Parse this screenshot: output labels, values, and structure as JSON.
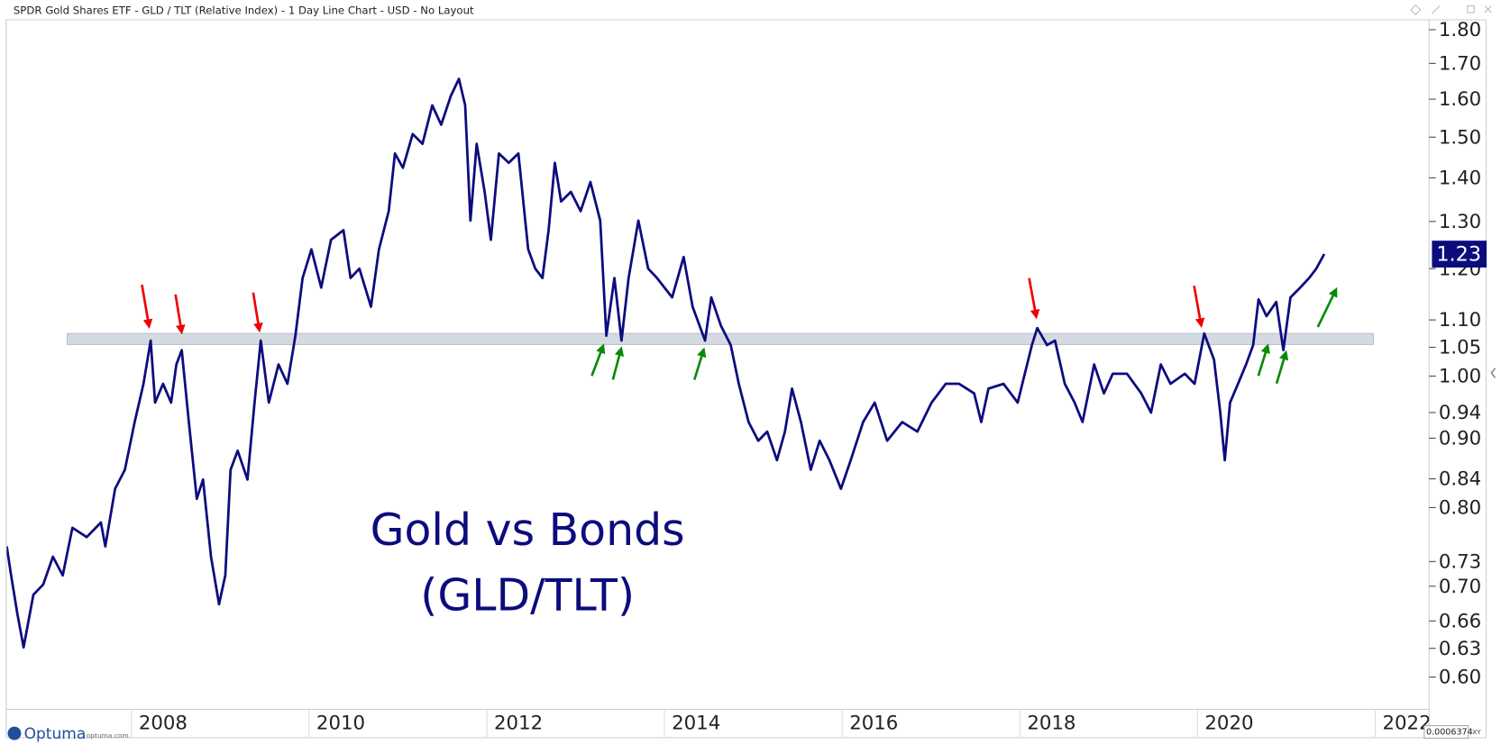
{
  "chart_data": {
    "type": "line",
    "title": "SPDR Gold Shares ETF - GLD / TLT (Relative Index) - 1 Day Line Chart - USD - No Layout",
    "annotations": [
      "Gold vs Bonds",
      "(GLD/TLT)"
    ],
    "log_y": true,
    "color": "#0c0c7e",
    "support_zone": [
      1.055,
      1.075
    ],
    "zone_color": "#d5dae2",
    "xlim": [
      2006.24,
      2022.25
    ],
    "ylim": [
      0.568,
      1.832
    ],
    "xticks": [
      2008,
      2010,
      2012,
      2014,
      2016,
      2018,
      2020,
      2022
    ],
    "yticks": [
      {
        "value": 1.8,
        "label": "1.80"
      },
      {
        "value": 1.7,
        "label": "1.70"
      },
      {
        "value": 1.6,
        "label": "1.60"
      },
      {
        "value": 1.5,
        "label": "1.50"
      },
      {
        "value": 1.4,
        "label": "1.40"
      },
      {
        "value": 1.3,
        "label": "1.30"
      },
      {
        "value": 1.2,
        "label": "1.20"
      },
      {
        "value": 1.1,
        "label": "1.10"
      },
      1.05,
      {
        "value": 1,
        "label": "1.00"
      },
      0.94,
      {
        "value": 0.9,
        "label": "0.90"
      },
      0.84,
      {
        "value": 0.8,
        "label": "0.80"
      },
      0.73,
      {
        "value": 0.7,
        "label": "0.70"
      },
      0.66,
      0.63,
      {
        "value": 0.6,
        "label": "0.60"
      }
    ],
    "x": [
      2006.24,
      2006.29,
      2006.36,
      2006.43,
      2006.54,
      2006.65,
      2006.76,
      2006.87,
      2006.98,
      2007.14,
      2007.3,
      2007.35,
      2007.46,
      2007.57,
      2007.68,
      2007.78,
      2007.86,
      2007.91,
      2008.0,
      2008.09,
      2008.15,
      2008.21,
      2008.29,
      2008.38,
      2008.45,
      2008.54,
      2008.63,
      2008.7,
      2008.76,
      2008.84,
      2008.95,
      2009.03,
      2009.1,
      2009.19,
      2009.3,
      2009.4,
      2009.49,
      2009.57,
      2009.67,
      2009.78,
      2009.89,
      2010.03,
      2010.11,
      2010.21,
      2010.34,
      2010.43,
      2010.54,
      2010.61,
      2010.7,
      2010.81,
      2010.92,
      2011.03,
      2011.13,
      2011.24,
      2011.33,
      2011.4,
      2011.46,
      2011.53,
      2011.62,
      2011.69,
      2011.78,
      2011.89,
      2012.0,
      2012.11,
      2012.19,
      2012.27,
      2012.34,
      2012.41,
      2012.48,
      2012.59,
      2012.7,
      2012.81,
      2012.92,
      2012.99,
      2013.08,
      2013.16,
      2013.24,
      2013.35,
      2013.46,
      2013.56,
      2013.73,
      2013.86,
      2013.96,
      2014.1,
      2014.17,
      2014.28,
      2014.39,
      2014.48,
      2014.59,
      2014.7,
      2014.8,
      2014.91,
      2015.0,
      2015.08,
      2015.18,
      2015.29,
      2015.39,
      2015.5,
      2015.63,
      2015.74,
      2015.88,
      2016.01,
      2016.15,
      2016.32,
      2016.49,
      2016.65,
      2016.81,
      2016.96,
      2017.13,
      2017.21,
      2017.29,
      2017.46,
      2017.62,
      2017.7,
      2017.78,
      2017.84,
      2017.95,
      2018.04,
      2018.15,
      2018.26,
      2018.35,
      2018.48,
      2018.59,
      2018.69,
      2018.85,
      2019.01,
      2019.12,
      2019.23,
      2019.34,
      2019.5,
      2019.61,
      2019.72,
      2019.83,
      2019.9,
      2019.95,
      2020.01,
      2020.1,
      2020.19,
      2020.27,
      2020.33,
      2020.42,
      2020.53,
      2020.61,
      2020.69,
      2020.8,
      2020.9,
      2020.98,
      2021.07
    ],
    "values": [
      0.749,
      0.713,
      0.668,
      0.631,
      0.69,
      0.702,
      0.736,
      0.713,
      0.773,
      0.761,
      0.78,
      0.749,
      0.826,
      0.853,
      0.925,
      0.987,
      1.062,
      0.956,
      0.987,
      0.956,
      1.02,
      1.045,
      0.925,
      0.812,
      0.839,
      0.736,
      0.679,
      0.713,
      0.853,
      0.881,
      0.839,
      0.956,
      1.062,
      0.956,
      1.02,
      0.987,
      1.071,
      1.181,
      1.24,
      1.162,
      1.26,
      1.281,
      1.181,
      1.2,
      1.125,
      1.24,
      1.323,
      1.459,
      1.424,
      1.508,
      1.483,
      1.583,
      1.532,
      1.609,
      1.656,
      1.583,
      1.302,
      1.483,
      1.367,
      1.26,
      1.459,
      1.436,
      1.459,
      1.24,
      1.2,
      1.181,
      1.281,
      1.436,
      1.345,
      1.367,
      1.323,
      1.39,
      1.302,
      1.071,
      1.181,
      1.062,
      1.181,
      1.302,
      1.2,
      1.181,
      1.143,
      1.224,
      1.125,
      1.062,
      1.143,
      1.089,
      1.054,
      0.987,
      0.925,
      0.896,
      0.91,
      0.867,
      0.91,
      0.979,
      0.925,
      0.853,
      0.896,
      0.867,
      0.826,
      0.867,
      0.925,
      0.956,
      0.896,
      0.925,
      0.91,
      0.956,
      0.987,
      0.987,
      0.971,
      0.925,
      0.979,
      0.987,
      0.956,
      1.004,
      1.054,
      1.085,
      1.054,
      1.062,
      0.987,
      0.956,
      0.925,
      1.02,
      0.971,
      1.004,
      1.004,
      0.971,
      0.94,
      1.02,
      0.987,
      1.004,
      0.987,
      1.075,
      1.028,
      0.94,
      0.867,
      0.956,
      0.987,
      1.02,
      1.054,
      1.139,
      1.107,
      1.134,
      1.045,
      1.143,
      1.162,
      1.181,
      1.2,
      1.23
    ]
  },
  "footer": {
    "logo": "Optuma",
    "site": "optuma.com",
    "readout": "0.0006374",
    "mode": "XY"
  }
}
